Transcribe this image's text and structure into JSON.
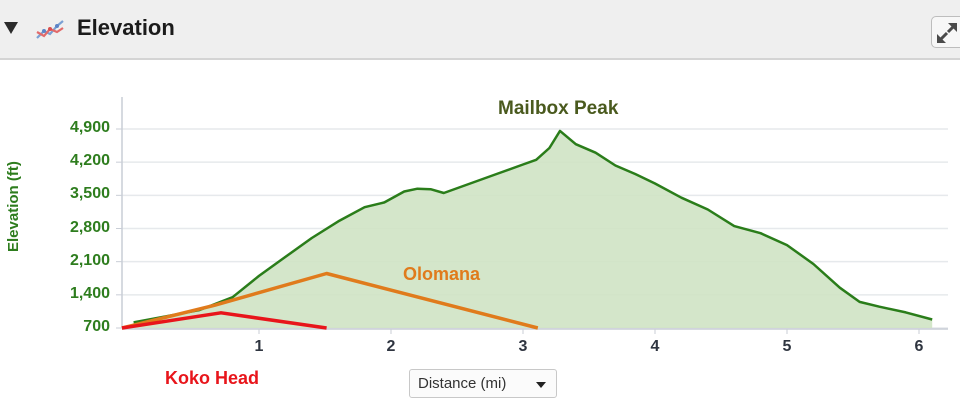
{
  "header": {
    "title": "Elevation",
    "collapse_icon": "triangle-down-icon",
    "chart_icon": "line-chart-icon",
    "expand_icon": "expand-arrows-icon"
  },
  "colors": {
    "axis_text": "#2e7d1e",
    "profile_line": "#2a7d1a",
    "profile_fill": "#cfe3c4",
    "olomana": "#e07b1c",
    "koko_head": "#e8151b",
    "mailbox_label": "#4a5a1e"
  },
  "xaxis_control": {
    "label": "Distance (mi)",
    "selected": "Distance (mi)"
  },
  "chart_data": {
    "type": "area",
    "title": "Elevation",
    "xlabel": "Distance (mi)",
    "ylabel": "Elevation (ft)",
    "ylim": [
      700,
      4900
    ],
    "xlim": [
      0,
      6.15
    ],
    "yticks": [
      "4,900",
      "4,200",
      "3,500",
      "2,800",
      "2,100",
      "1,400",
      "700"
    ],
    "ytick_values": [
      4900,
      4200,
      3500,
      2800,
      2100,
      1400,
      700
    ],
    "xticks": [
      "1",
      "2",
      "3",
      "4",
      "5",
      "6"
    ],
    "xtick_values": [
      1,
      2,
      3,
      4,
      5,
      6
    ],
    "grid": "horizontal",
    "legend": "none (inline annotations)",
    "annotations": [
      {
        "text": "Mailbox Peak",
        "x": 3.28,
        "y": 5200
      },
      {
        "text": "Olomana",
        "x": 2.6,
        "y": 1950
      },
      {
        "text": "Koko Head",
        "x": 0.65,
        "y": -100
      }
    ],
    "series": [
      {
        "name": "Mailbox Peak",
        "style": "filled area",
        "x": [
          0.05,
          0.3,
          0.55,
          0.8,
          1.0,
          1.2,
          1.4,
          1.6,
          1.8,
          1.95,
          2.1,
          2.2,
          2.3,
          2.4,
          2.6,
          2.8,
          3.0,
          3.1,
          3.2,
          3.28,
          3.4,
          3.55,
          3.7,
          3.85,
          4.0,
          4.2,
          4.4,
          4.6,
          4.8,
          5.0,
          5.2,
          5.4,
          5.55,
          5.7,
          5.9,
          6.1
        ],
        "values": [
          820,
          950,
          1080,
          1350,
          1800,
          2200,
          2600,
          2950,
          3250,
          3350,
          3580,
          3640,
          3630,
          3550,
          3750,
          3950,
          4150,
          4250,
          4500,
          4860,
          4580,
          4400,
          4130,
          3950,
          3750,
          3450,
          3200,
          2850,
          2700,
          2450,
          2050,
          1550,
          1250,
          1150,
          1030,
          880
        ]
      },
      {
        "name": "Olomana",
        "style": "line",
        "x": [
          0,
          0.7,
          1.55,
          3.15
        ],
        "values": [
          700,
          1180,
          1850,
          700
        ]
      },
      {
        "name": "Koko Head",
        "style": "line",
        "x": [
          0,
          0.75,
          1.55
        ],
        "values": [
          700,
          1020,
          700
        ]
      }
    ]
  }
}
